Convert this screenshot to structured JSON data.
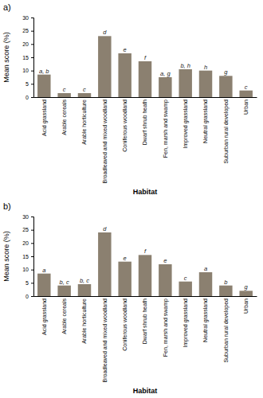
{
  "chart_data": [
    {
      "type": "bar",
      "title": "a)",
      "categories": [
        "Acid grassland",
        "Arable cereals",
        "Arable horticulture",
        "Broadleaved and mixed woodland",
        "Coniferous woodland",
        "Dwarf shrub heath",
        "Fen, marsh and swamp",
        "Improved grassland",
        "Neutral grassland",
        "Suburban rural developed",
        "Urban"
      ],
      "values": [
        8.5,
        1.5,
        1.5,
        23.0,
        16.5,
        13.5,
        7.5,
        10.5,
        10.0,
        8.0,
        2.5
      ],
      "annotations": [
        "a, b",
        "c",
        "c",
        "d",
        "e",
        "f",
        "a, g",
        "b, h",
        "h",
        "g",
        "c"
      ],
      "color": "#8B8070",
      "xlabel": "Habitat",
      "ylabel": "Mean score (%)",
      "ylim": [
        0,
        30
      ],
      "yticks": [
        0,
        5,
        10,
        15,
        20,
        25,
        30
      ],
      "grid": false
    },
    {
      "type": "bar",
      "title": "b)",
      "categories": [
        "Acid grassland",
        "Arable cereals",
        "Arable horticulture",
        "Broadleaved and mixed woodland",
        "Coniferous woodland",
        "Dwarf shrub heath",
        "Fen, marsh and swamp",
        "Improved grassland",
        "Neutral grassland",
        "Suburban rural developed",
        "Urban"
      ],
      "values": [
        8.5,
        4.0,
        4.5,
        24.0,
        13.0,
        15.5,
        12.0,
        5.5,
        9.0,
        4.0,
        2.0
      ],
      "annotations": [
        "a",
        "b, c",
        "b, c",
        "d",
        "e",
        "f",
        "e",
        "c",
        "a",
        "b",
        "g"
      ],
      "color": "#8B8070",
      "xlabel": "Habitat",
      "ylabel": "Mean score (%)",
      "ylim": [
        0,
        30
      ],
      "yticks": [
        0,
        5,
        10,
        15,
        20,
        25,
        30
      ],
      "grid": false
    }
  ]
}
